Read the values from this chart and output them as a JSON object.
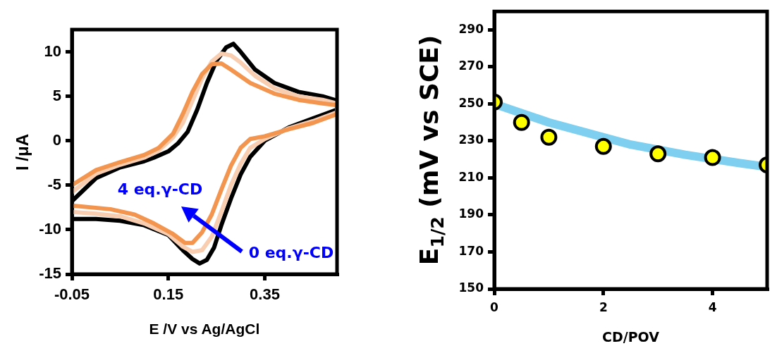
{
  "chart_data": [
    {
      "type": "line",
      "xlabel": "E /V vs Ag/AgCl",
      "ylabel": "I /μA",
      "xlim": [
        -0.05,
        0.5
      ],
      "xticks": [
        -0.05,
        0.15,
        0.35
      ],
      "ylim": [
        -15,
        12.5
      ],
      "yticks": [
        -15,
        -10,
        -5,
        0,
        5,
        10
      ],
      "marker": "none",
      "legend": false,
      "annotations": [
        "4 eq.γ-CD",
        "0 eq.γ-CD"
      ],
      "series": [
        {
          "color": "#000000",
          "x": [
            -0.05,
            0.0,
            0.05,
            0.1,
            0.12,
            0.15,
            0.17,
            0.19,
            0.21,
            0.23,
            0.25,
            0.27,
            0.285,
            0.3,
            0.33,
            0.37,
            0.42,
            0.47,
            0.5,
            0.5,
            0.45,
            0.4,
            0.35,
            0.32,
            0.3,
            0.28,
            0.26,
            0.245,
            0.23,
            0.215,
            0.2,
            0.18,
            0.15,
            0.1,
            0.05,
            0.0,
            -0.05
          ],
          "values": [
            -6.8,
            -4.2,
            -3.0,
            -2.3,
            -1.9,
            -1.2,
            -0.3,
            1.0,
            3.5,
            6.5,
            9.0,
            10.5,
            10.9,
            10.0,
            8.0,
            6.5,
            5.5,
            5.0,
            4.5,
            3.5,
            2.5,
            1.5,
            0.0,
            -1.8,
            -3.8,
            -6.5,
            -9.5,
            -12.0,
            -13.4,
            -13.8,
            -13.3,
            -12.3,
            -10.6,
            -9.5,
            -9.0,
            -8.8,
            -8.8
          ]
        },
        {
          "color": "#f8cdb0",
          "x": [
            -0.05,
            0.0,
            0.05,
            0.1,
            0.13,
            0.16,
            0.18,
            0.2,
            0.22,
            0.24,
            0.26,
            0.28,
            0.3,
            0.33,
            0.37,
            0.42,
            0.47,
            0.5,
            0.5,
            0.45,
            0.4,
            0.35,
            0.32,
            0.3,
            0.28,
            0.26,
            0.24,
            0.22,
            0.2,
            0.18,
            0.15,
            0.1,
            0.05,
            0.0,
            -0.05
          ],
          "values": [
            -5.8,
            -3.7,
            -2.7,
            -1.9,
            -1.1,
            0.4,
            2.0,
            4.5,
            7.0,
            8.9,
            9.8,
            9.6,
            8.8,
            7.3,
            5.9,
            5.0,
            4.6,
            4.2,
            3.2,
            2.2,
            1.4,
            0.2,
            -0.8,
            -2.6,
            -5.0,
            -8.0,
            -10.8,
            -12.3,
            -12.5,
            -11.9,
            -10.5,
            -9.3,
            -8.5,
            -8.2,
            -8.0
          ]
        },
        {
          "color": "#f4954f",
          "x": [
            -0.05,
            0.0,
            0.05,
            0.1,
            0.13,
            0.16,
            0.18,
            0.2,
            0.22,
            0.24,
            0.26,
            0.28,
            0.32,
            0.37,
            0.42,
            0.47,
            0.5,
            0.5,
            0.45,
            0.4,
            0.35,
            0.32,
            0.3,
            0.28,
            0.26,
            0.24,
            0.22,
            0.2,
            0.185,
            0.16,
            0.12,
            0.08,
            0.03,
            -0.05
          ],
          "values": [
            -5.0,
            -3.3,
            -2.4,
            -1.6,
            -0.8,
            0.8,
            3.0,
            5.5,
            7.5,
            8.6,
            8.7,
            8.0,
            6.5,
            5.3,
            4.6,
            4.2,
            4.0,
            3.0,
            2.0,
            1.3,
            0.5,
            0.2,
            -0.8,
            -2.8,
            -5.5,
            -8.3,
            -10.3,
            -11.5,
            -11.5,
            -10.5,
            -9.3,
            -8.3,
            -7.7,
            -7.3
          ]
        }
      ]
    },
    {
      "type": "scatter",
      "xlabel": "CD/POV",
      "ylabel": "E$_{1/2}$ (mV vs SCE)",
      "xlim": [
        0,
        5
      ],
      "xticks": [
        0,
        2,
        4
      ],
      "ylim": [
        150,
        300
      ],
      "yticks": [
        150,
        170,
        190,
        210,
        230,
        250,
        270,
        290
      ],
      "legend": false,
      "series": [
        {
          "type": "line",
          "color": "#7fd0f0",
          "marker": "none",
          "x": [
            0,
            1,
            2.5,
            3.5,
            4.5,
            5
          ],
          "values": [
            250,
            240,
            228,
            222.5,
            218,
            216
          ]
        },
        {
          "type": "scatter",
          "color": "#ffff00",
          "marker": "circle",
          "x": [
            0,
            0.5,
            1,
            2,
            3,
            4,
            5
          ],
          "values": [
            251,
            240,
            232,
            227,
            223,
            221,
            217
          ]
        }
      ]
    }
  ]
}
